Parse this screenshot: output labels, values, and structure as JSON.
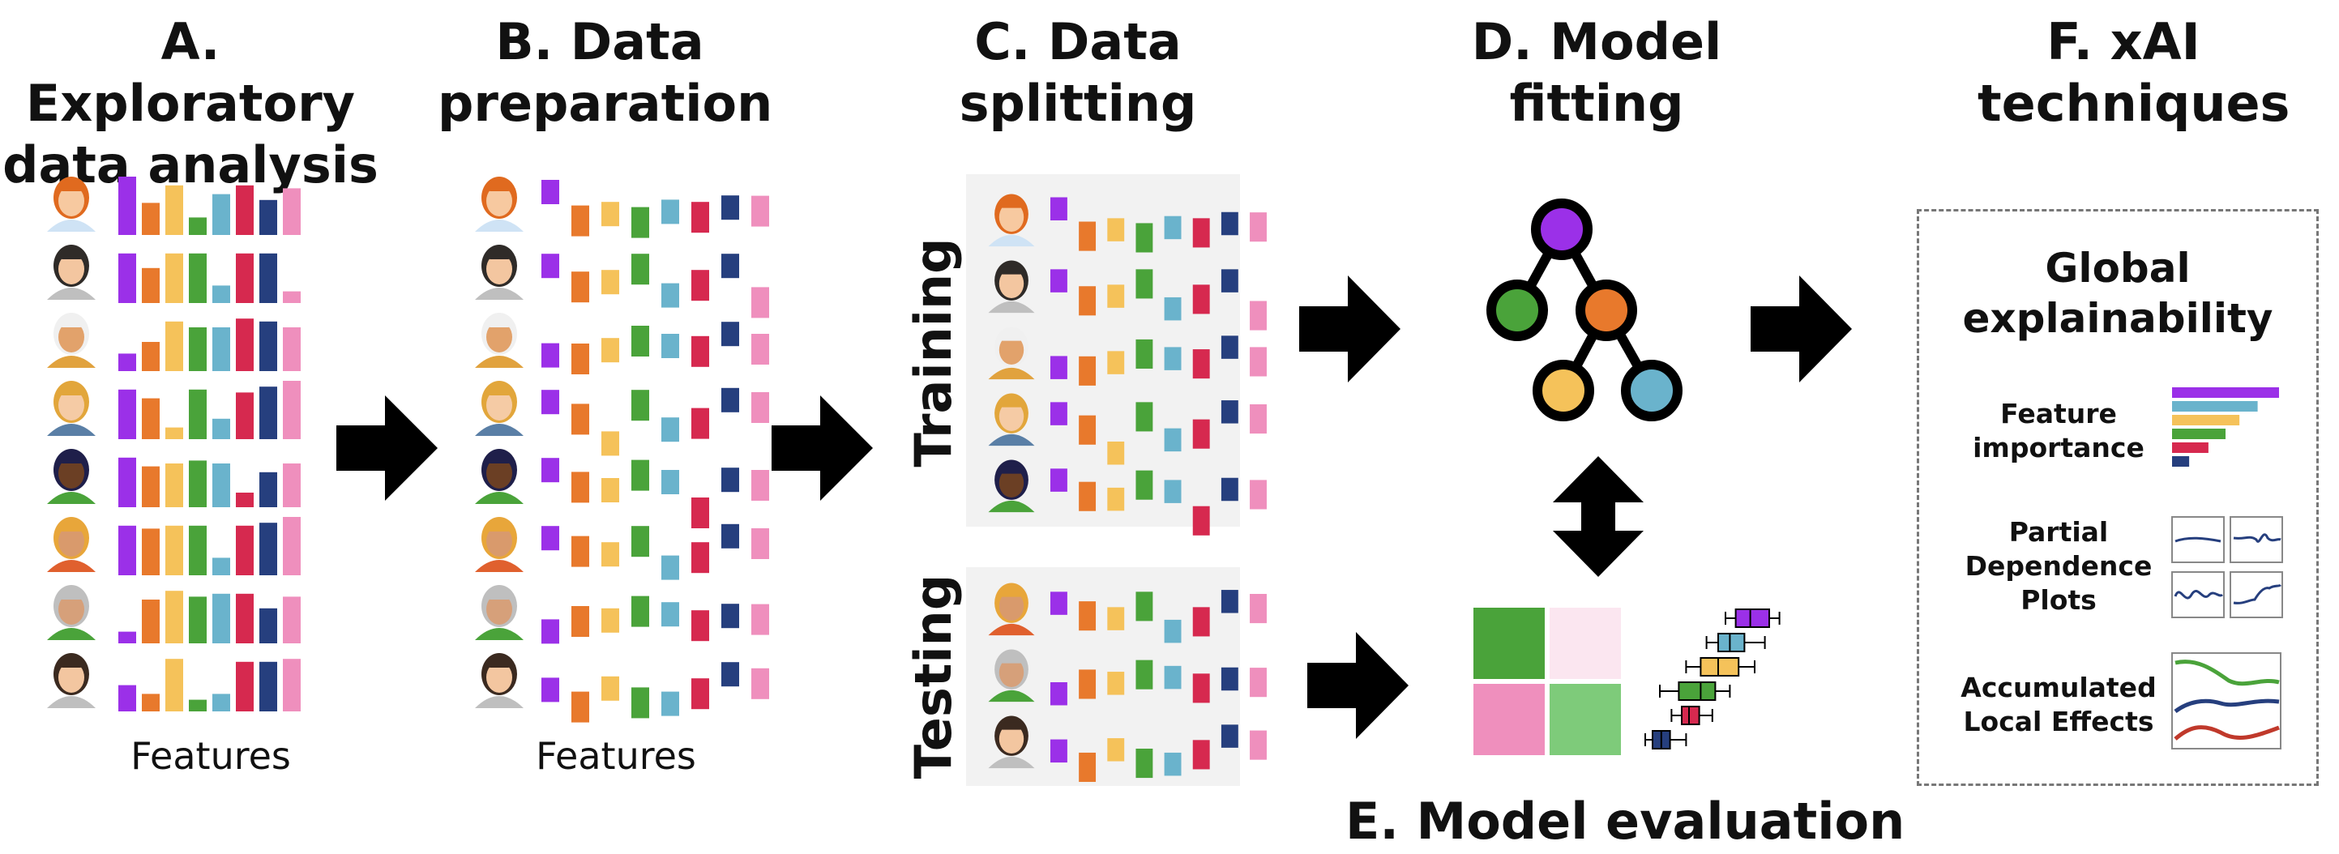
{
  "titles": {
    "a": "A. Exploratory\ndata analysis",
    "b": "B. Data\npreparation",
    "c": "C. Data\nsplitting",
    "d": "D. Model\nfitting",
    "e": "E. Model evaluation",
    "f": "F. xAI\ntechniques"
  },
  "features_label_a": "Features",
  "features_label_b": "Features",
  "split": {
    "training": "Training",
    "testing": "Testing"
  },
  "xai": {
    "box_title": "Global\nexplainability",
    "feature_importance": "Feature\nimportance",
    "pdp": "Partial\nDependence\nPlots",
    "ale": "Accumulated\nLocal Effects"
  },
  "colors": {
    "purple": "#9b30e8",
    "orange": "#e8792c",
    "yellow": "#f5c25a",
    "green": "#4aa33a",
    "teal": "#6ab3cc",
    "red": "#d6294f",
    "navy": "#263f7e",
    "pink": "#ef8fbd"
  },
  "feature_bar_heights": [
    [
      1.0,
      0.55,
      0.85,
      0.3,
      0.7,
      0.85,
      0.6,
      0.8
    ],
    [
      0.85,
      0.6,
      0.85,
      0.85,
      0.3,
      0.85,
      0.85,
      0.2
    ],
    [
      0.3,
      0.5,
      0.85,
      0.75,
      0.75,
      0.9,
      0.85,
      0.75
    ],
    [
      0.85,
      0.7,
      0.2,
      0.85,
      0.35,
      0.8,
      0.9,
      1.0
    ],
    [
      0.85,
      0.7,
      0.75,
      0.8,
      0.75,
      0.25,
      0.6,
      0.75
    ],
    [
      0.85,
      0.8,
      0.85,
      0.85,
      0.3,
      0.85,
      0.9,
      1.0
    ],
    [
      0.2,
      0.75,
      0.9,
      0.8,
      0.85,
      0.85,
      0.6,
      0.8
    ],
    [
      0.45,
      0.3,
      0.9,
      0.2,
      0.3,
      0.85,
      0.85,
      0.9
    ]
  ],
  "feature_importance": [
    1.0,
    0.8,
    0.63,
    0.5,
    0.34,
    0.16
  ],
  "boxplots": [
    {
      "color": "#9b30e8",
      "q1": 0.62,
      "med": 0.72,
      "q3": 0.85,
      "min": 0.55,
      "max": 0.92
    },
    {
      "color": "#6ab3cc",
      "q1": 0.5,
      "med": 0.58,
      "q3": 0.68,
      "min": 0.42,
      "max": 0.82
    },
    {
      "color": "#f5c25a",
      "q1": 0.38,
      "med": 0.5,
      "q3": 0.64,
      "min": 0.28,
      "max": 0.75
    },
    {
      "color": "#4aa33a",
      "q1": 0.23,
      "med": 0.38,
      "q3": 0.48,
      "min": 0.1,
      "max": 0.58
    },
    {
      "color": "#d6294f",
      "q1": 0.25,
      "med": 0.3,
      "q3": 0.37,
      "min": 0.18,
      "max": 0.46
    },
    {
      "color": "#263f7e",
      "q1": 0.05,
      "med": 0.11,
      "q3": 0.17,
      "min": 0.0,
      "max": 0.28
    }
  ]
}
